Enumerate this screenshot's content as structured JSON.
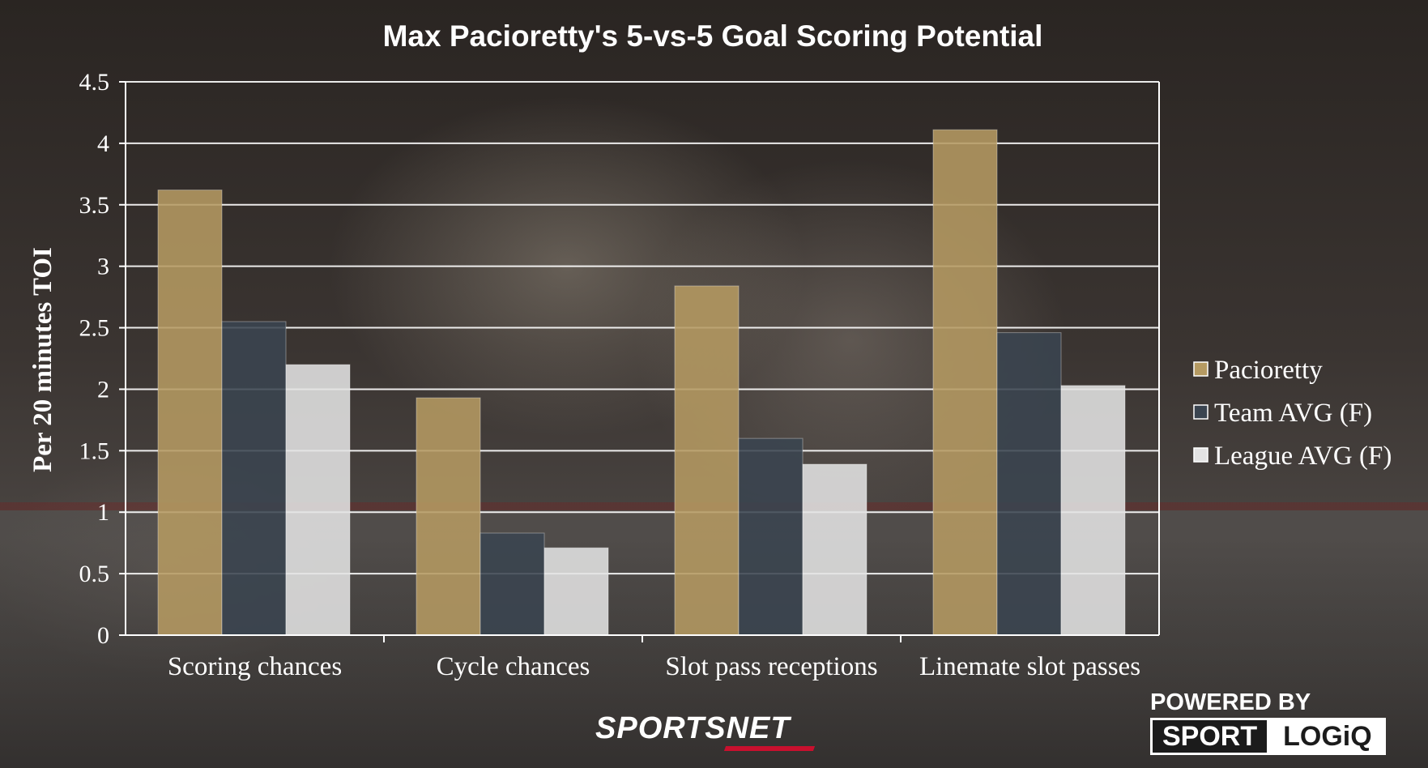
{
  "chart_data": {
    "type": "bar",
    "title": "Max Pacioretty's 5-vs-5 Goal Scoring Potential",
    "xlabel": "",
    "ylabel": "Per 20 minutes TOI",
    "ylim": [
      0,
      4.5
    ],
    "yticks": [
      "0",
      "0.5",
      "1",
      "1.5",
      "2",
      "2.5",
      "3",
      "3.5",
      "4",
      "4.5"
    ],
    "grid": true,
    "legend_position": "right",
    "categories": [
      "Scoring chances",
      "Cycle chances",
      "Slot pass receptions",
      "Linemate slot passes"
    ],
    "series": [
      {
        "name": "Pacioretty",
        "color": "#b59a62",
        "values": [
          3.62,
          1.93,
          2.84,
          4.11
        ]
      },
      {
        "name": "Team AVG (F)",
        "color": "#3a4450",
        "values": [
          2.55,
          0.83,
          1.6,
          2.46
        ]
      },
      {
        "name": "League AVG (F)",
        "color": "#e3e3e3",
        "values": [
          2.2,
          0.71,
          1.39,
          2.03
        ]
      }
    ]
  },
  "branding": {
    "broadcaster": "SPORTSNET",
    "powered_by": "POWERED BY",
    "logo_left": "SPORT",
    "logo_right": "LOGiQ"
  }
}
